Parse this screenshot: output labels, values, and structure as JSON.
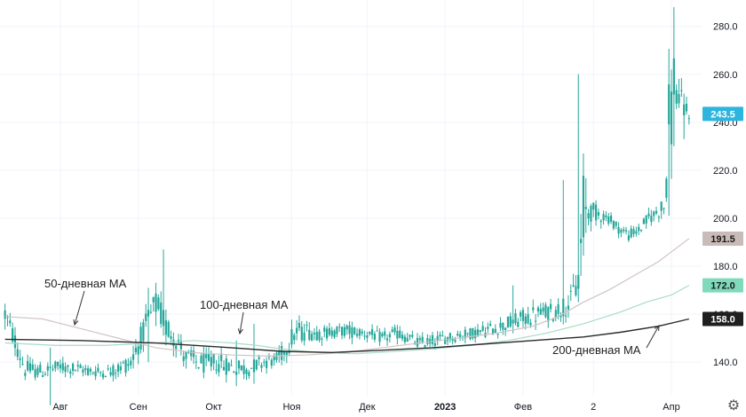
{
  "chart_data": {
    "type": "candlestick",
    "y_axis": {
      "ticks": [
        140,
        160,
        180,
        200,
        220,
        240,
        260,
        280
      ],
      "tick_labels": [
        "140.0",
        "160.0",
        "180.0",
        "200.0",
        "220.0",
        "240.0",
        "260.0",
        "280.0"
      ],
      "range": [
        126,
        291
      ],
      "position": "right"
    },
    "x_axis": {
      "ticks": [
        {
          "label": "Авг",
          "day": 22
        },
        {
          "label": "Сен",
          "day": 53
        },
        {
          "label": "Окт",
          "day": 83
        },
        {
          "label": "Ноя",
          "day": 114
        },
        {
          "label": "Дек",
          "day": 144
        },
        {
          "label": "2023",
          "day": 175,
          "bold": true
        },
        {
          "label": "Фев",
          "day": 206
        },
        {
          "label": "2",
          "day": 234
        },
        {
          "label": "Апр",
          "day": 265
        }
      ],
      "range": [
        -2,
        277
      ]
    },
    "grid": true,
    "colors": {
      "candle": "#26a69a",
      "ma50": "#d1c4c4",
      "ma100": "#a8dcc8",
      "ma200": "#2b2b2b",
      "tag_last": "#2db5e0",
      "tag_ma50": "#c9bcb8",
      "tag_ma100": "#7fd9bb",
      "tag_ma200": "#1f1f1f",
      "grid": "#f0f3fa",
      "arrow": "#333333"
    },
    "candle_keyframes": [
      [
        0,
        160,
        10
      ],
      [
        8,
        137,
        8
      ],
      [
        15,
        136,
        6
      ],
      [
        22,
        138,
        6
      ],
      [
        30,
        137,
        5
      ],
      [
        36,
        136,
        5
      ],
      [
        42,
        136,
        5
      ],
      [
        50,
        140,
        8
      ],
      [
        54,
        150,
        10
      ],
      [
        57,
        157,
        12
      ],
      [
        60,
        164,
        14
      ],
      [
        64,
        155,
        12
      ],
      [
        68,
        150,
        10
      ],
      [
        72,
        142,
        9
      ],
      [
        76,
        140,
        9
      ],
      [
        80,
        139,
        9
      ],
      [
        84,
        140,
        9
      ],
      [
        90,
        138,
        8
      ],
      [
        96,
        137,
        7
      ],
      [
        102,
        140,
        6
      ],
      [
        108,
        141,
        6
      ],
      [
        112,
        146,
        8
      ],
      [
        115,
        152,
        10
      ],
      [
        120,
        153,
        8
      ],
      [
        126,
        152,
        6
      ],
      [
        132,
        153,
        5
      ],
      [
        138,
        153,
        6
      ],
      [
        144,
        152,
        5
      ],
      [
        150,
        150,
        5
      ],
      [
        156,
        152,
        6
      ],
      [
        160,
        150,
        5
      ],
      [
        165,
        148,
        5
      ],
      [
        170,
        149,
        5
      ],
      [
        175,
        150,
        5
      ],
      [
        180,
        151,
        5
      ],
      [
        185,
        152,
        5
      ],
      [
        190,
        153,
        6
      ],
      [
        195,
        154,
        6
      ],
      [
        200,
        156,
        7
      ],
      [
        206,
        158,
        8
      ],
      [
        212,
        160,
        8
      ],
      [
        218,
        161,
        8
      ],
      [
        222,
        163,
        9
      ],
      [
        225,
        165,
        10
      ],
      [
        228,
        175,
        20
      ],
      [
        230,
        200,
        45
      ],
      [
        232,
        203,
        10
      ],
      [
        236,
        202,
        7
      ],
      [
        240,
        200,
        5
      ],
      [
        244,
        196,
        5
      ],
      [
        248,
        193,
        5
      ],
      [
        252,
        195,
        5
      ],
      [
        256,
        200,
        6
      ],
      [
        260,
        203,
        6
      ],
      [
        262,
        205,
        10
      ],
      [
        264,
        235,
        45
      ],
      [
        266,
        258,
        30
      ],
      [
        268,
        250,
        15
      ],
      [
        270,
        245,
        10
      ],
      [
        272,
        244,
        7
      ]
    ],
    "spikes": [
      [
        18,
        122,
        146
      ],
      [
        57,
        140,
        171
      ],
      [
        63,
        151,
        187
      ],
      [
        92,
        130,
        149
      ],
      [
        99,
        131,
        156
      ],
      [
        202,
        152,
        172
      ],
      [
        222,
        160,
        216
      ],
      [
        228,
        165,
        260
      ],
      [
        264,
        201,
        265
      ],
      [
        266,
        230,
        288
      ],
      [
        270,
        233,
        252
      ]
    ],
    "series": [
      {
        "name": "50-дневная МА",
        "key": "ma50",
        "points": [
          [
            0,
            159
          ],
          [
            15,
            158
          ],
          [
            30,
            154
          ],
          [
            45,
            150
          ],
          [
            60,
            146
          ],
          [
            75,
            144
          ],
          [
            90,
            143
          ],
          [
            105,
            142.5
          ],
          [
            120,
            143
          ],
          [
            135,
            144
          ],
          [
            150,
            146
          ],
          [
            165,
            148
          ],
          [
            180,
            150
          ],
          [
            195,
            152
          ],
          [
            210,
            155
          ],
          [
            220,
            159
          ],
          [
            230,
            165
          ],
          [
            240,
            170
          ],
          [
            250,
            176
          ],
          [
            260,
            182
          ],
          [
            265,
            186
          ],
          [
            272,
            191.5
          ]
        ]
      },
      {
        "name": "100-дневная МА",
        "key": "ma100",
        "points": [
          [
            0,
            148
          ],
          [
            20,
            147
          ],
          [
            40,
            147
          ],
          [
            60,
            148
          ],
          [
            75,
            149
          ],
          [
            90,
            148
          ],
          [
            100,
            147
          ],
          [
            110,
            145.5
          ],
          [
            125,
            144
          ],
          [
            140,
            143.5
          ],
          [
            155,
            144.5
          ],
          [
            170,
            145.5
          ],
          [
            185,
            147
          ],
          [
            200,
            149
          ],
          [
            215,
            152
          ],
          [
            230,
            156
          ],
          [
            245,
            161
          ],
          [
            255,
            165
          ],
          [
            265,
            168
          ],
          [
            272,
            172
          ]
        ]
      },
      {
        "name": "200-дневная МА",
        "key": "ma200",
        "points": [
          [
            0,
            149.5
          ],
          [
            30,
            149
          ],
          [
            60,
            148
          ],
          [
            90,
            146
          ],
          [
            110,
            144.5
          ],
          [
            130,
            144
          ],
          [
            150,
            145
          ],
          [
            170,
            146
          ],
          [
            190,
            147.5
          ],
          [
            210,
            149
          ],
          [
            230,
            150.5
          ],
          [
            245,
            152.5
          ],
          [
            260,
            155
          ],
          [
            272,
            158
          ]
        ]
      }
    ],
    "annotations": [
      {
        "text": "50-дневная МА",
        "series": "ma50"
      },
      {
        "text": "100-дневная МА",
        "series": "ma100"
      },
      {
        "text": "200-дневная МА",
        "series": "ma200"
      }
    ],
    "price_tags": [
      {
        "value": 243.5,
        "label": "243.5",
        "color_key": "tag_last",
        "text_color": "#ffffff"
      },
      {
        "value": 191.5,
        "label": "191.5",
        "color_key": "tag_ma50",
        "text_color": "#1a1a1a"
      },
      {
        "value": 172.0,
        "label": "172.0",
        "color_key": "tag_ma100",
        "text_color": "#1a1a1a"
      },
      {
        "value": 158.0,
        "label": "158.0",
        "color_key": "tag_ma200",
        "text_color": "#ffffff"
      }
    ],
    "settings_icon": "gear-icon"
  }
}
